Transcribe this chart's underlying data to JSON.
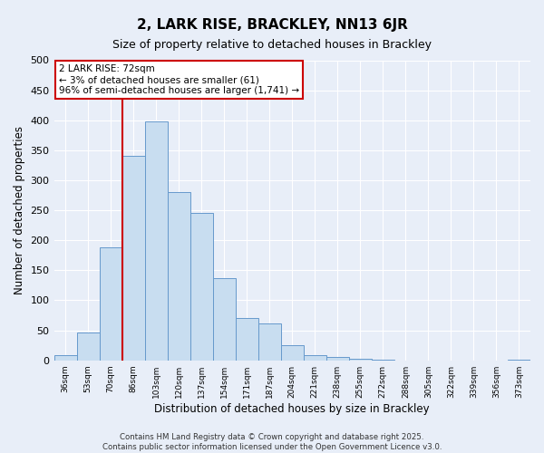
{
  "title": "2, LARK RISE, BRACKLEY, NN13 6JR",
  "subtitle": "Size of property relative to detached houses in Brackley",
  "xlabel": "Distribution of detached houses by size in Brackley",
  "ylabel": "Number of detached properties",
  "bar_color": "#c8ddf0",
  "bar_edge_color": "#6699cc",
  "background_color": "#e8eef8",
  "grid_color": "#ffffff",
  "bins": [
    "36sqm",
    "53sqm",
    "70sqm",
    "86sqm",
    "103sqm",
    "120sqm",
    "137sqm",
    "154sqm",
    "171sqm",
    "187sqm",
    "204sqm",
    "221sqm",
    "238sqm",
    "255sqm",
    "272sqm",
    "288sqm",
    "305sqm",
    "322sqm",
    "339sqm",
    "356sqm",
    "373sqm"
  ],
  "values": [
    8,
    47,
    188,
    340,
    398,
    280,
    246,
    137,
    70,
    62,
    25,
    8,
    5,
    2,
    1,
    0,
    0,
    0,
    0,
    0,
    1
  ],
  "ylim": [
    0,
    500
  ],
  "yticks": [
    0,
    50,
    100,
    150,
    200,
    250,
    300,
    350,
    400,
    450,
    500
  ],
  "annotation_title": "2 LARK RISE: 72sqm",
  "annotation_line1": "← 3% of detached houses are smaller (61)",
  "annotation_line2": "96% of semi-detached houses are larger (1,741) →",
  "vline_x_index": 3,
  "vline_color": "#cc0000",
  "annotation_box_color": "#ffffff",
  "annotation_box_edge": "#cc0000",
  "footer_line1": "Contains HM Land Registry data © Crown copyright and database right 2025.",
  "footer_line2": "Contains public sector information licensed under the Open Government Licence v3.0."
}
